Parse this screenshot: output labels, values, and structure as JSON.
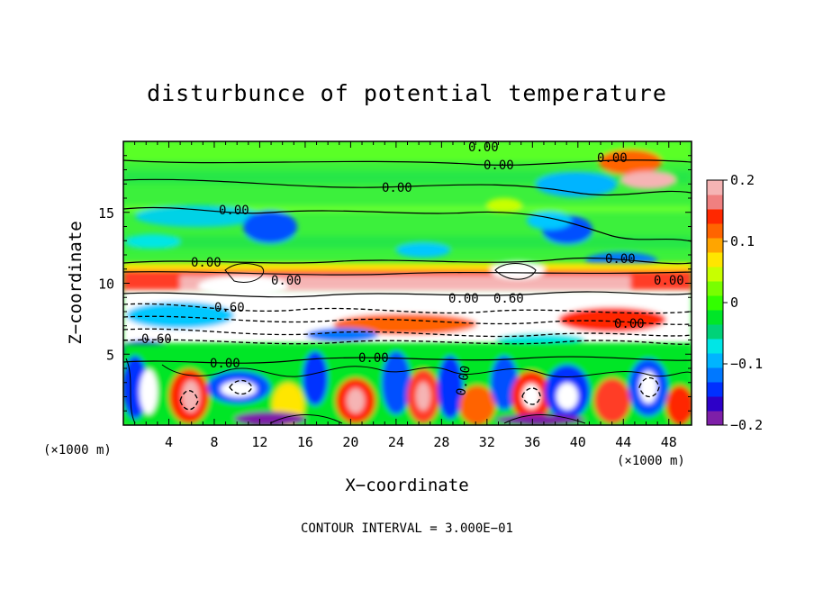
{
  "chart_data": {
    "type": "heatmap",
    "title": "disturbunce of potential temperature",
    "xlabel": "X−coordinate",
    "ylabel": "Z−coordinate",
    "x_unit": "(×1000 m)",
    "y_unit": "(×1000 m)",
    "xlim": [
      0,
      50
    ],
    "ylim": [
      0,
      20
    ],
    "x_ticks": [
      4,
      8,
      12,
      16,
      20,
      24,
      28,
      32,
      36,
      40,
      44,
      48
    ],
    "y_ticks": [
      5,
      10,
      15
    ],
    "colorbar": {
      "ticks": [
        0.2,
        0.1,
        0,
        -0.1,
        -0.2
      ],
      "tick_labels": [
        "0.2",
        "0.1",
        "0",
        "−0.1",
        "−0.2"
      ],
      "range": [
        -0.2,
        0.2
      ],
      "colors": [
        "#7e1fa8",
        "#2d00c8",
        "#0030ff",
        "#0078ff",
        "#00b4ff",
        "#00e6e6",
        "#00d278",
        "#00e628",
        "#32ff00",
        "#78ff00",
        "#c8ff00",
        "#ffe600",
        "#ffa500",
        "#ff6400",
        "#ff2800",
        "#f08080",
        "#f5b4b4"
      ]
    },
    "contour_interval": "CONTOUR INTERVAL = 3.000E−01",
    "contour_labels": [
      "0.00",
      "0.00",
      "0.00",
      "0.00",
      "0.00",
      "0.00",
      "0.00",
      "0.00",
      "0.00",
      "0.00",
      "0.00",
      "0.00",
      "0.00",
      "0.00",
      "0.60",
      "0.60",
      "0.60"
    ],
    "grid": false
  }
}
